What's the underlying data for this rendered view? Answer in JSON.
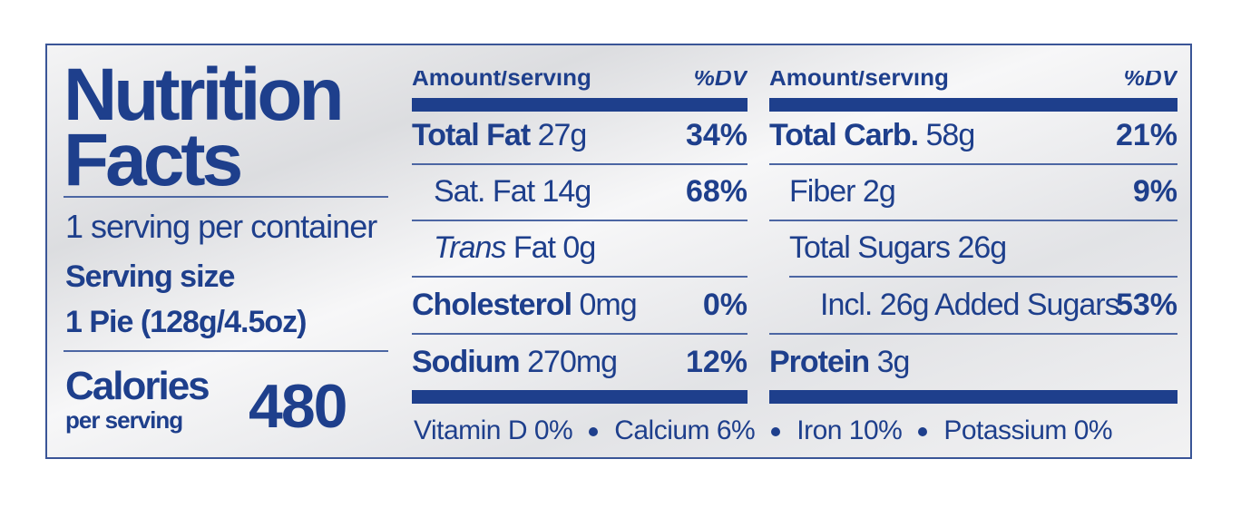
{
  "title": [
    "Nutrition",
    "Facts"
  ],
  "servings": "1 serving per container",
  "serving_size": {
    "label": "Serving size",
    "value": "1 Pie (128g/4.5oz)"
  },
  "calories": {
    "label": "Calories",
    "sub": "per serving",
    "value": "480"
  },
  "columns": [
    {
      "header": {
        "amount": "Amount/serving",
        "dv": "%DV"
      },
      "rows": [
        {
          "name": "Total Fat",
          "amount": "27g",
          "dv": "34%"
        },
        {
          "name": "Sat. Fat 14g",
          "dv": "68%"
        },
        {
          "prefix": "Trans",
          "name": "Fat 0g"
        },
        {
          "name": "Cholesterol",
          "amount": "0mg",
          "dv": "0%"
        },
        {
          "name": "Sodium",
          "amount": "270mg",
          "dv": "12%"
        }
      ]
    },
    {
      "header": {
        "amount": "Amount/serving",
        "dv": "%DV"
      },
      "rows": [
        {
          "name": "Total Carb.",
          "amount": "58g",
          "dv": "21%"
        },
        {
          "name": "Fiber 2g",
          "dv": "9%"
        },
        {
          "name": "Total Sugars 26g"
        },
        {
          "name": "Incl. 26g Added Sugars",
          "dv": "53%"
        },
        {
          "name": "Protein",
          "amount": "3g"
        }
      ]
    }
  ],
  "footer": [
    "Vitamin D 0%",
    "Calcium 6%",
    "Iron 10%",
    "Potassium 0%"
  ]
}
